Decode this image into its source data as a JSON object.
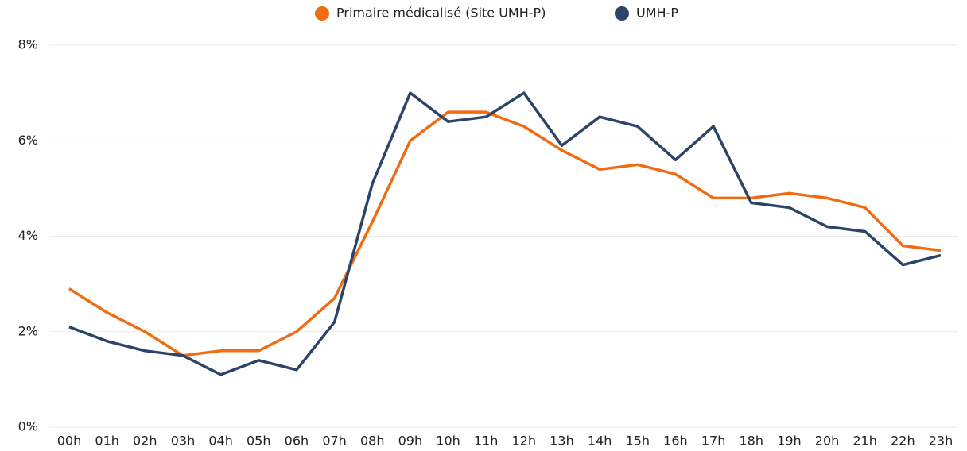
{
  "chart_data": {
    "type": "line",
    "categories": [
      "00h",
      "01h",
      "02h",
      "03h",
      "04h",
      "05h",
      "06h",
      "07h",
      "08h",
      "09h",
      "10h",
      "11h",
      "12h",
      "13h",
      "14h",
      "15h",
      "16h",
      "17h",
      "18h",
      "19h",
      "20h",
      "21h",
      "22h",
      "23h"
    ],
    "series": [
      {
        "name": "Primaire médicalisé (Site UMH-P)",
        "color": "#ef6c12",
        "values": [
          2.9,
          2.4,
          2.0,
          1.5,
          1.6,
          1.6,
          2.0,
          2.7,
          4.3,
          6.0,
          6.6,
          6.6,
          6.3,
          5.8,
          5.4,
          5.5,
          5.3,
          4.8,
          4.8,
          4.9,
          4.8,
          4.6,
          3.8,
          3.7
        ]
      },
      {
        "name": "UMH-P",
        "color": "#2c4468",
        "values": [
          2.1,
          1.8,
          1.6,
          1.5,
          1.1,
          1.4,
          1.2,
          2.2,
          5.1,
          7.0,
          6.4,
          6.5,
          7.0,
          5.9,
          6.5,
          6.3,
          5.6,
          6.3,
          4.7,
          4.6,
          4.2,
          4.1,
          3.4,
          3.6
        ]
      }
    ],
    "ylim": [
      0,
      8
    ],
    "yticks": [
      {
        "value": 0,
        "label": "0%"
      },
      {
        "value": 2,
        "label": "2%"
      },
      {
        "value": 4,
        "label": "4%"
      },
      {
        "value": 6,
        "label": "6%"
      },
      {
        "value": 8,
        "label": "8%"
      }
    ],
    "grid": true,
    "legend": "top"
  }
}
